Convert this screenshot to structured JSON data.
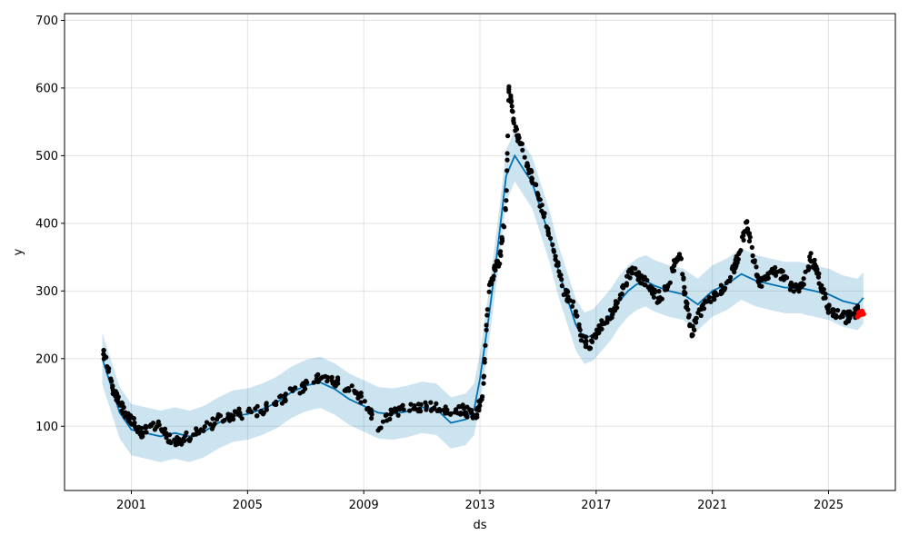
{
  "chart_data": {
    "type": "line",
    "title": "",
    "xlabel": "ds",
    "ylabel": "y",
    "xlim": [
      1998.7,
      2027.3
    ],
    "ylim": [
      5,
      710
    ],
    "x_ticks": [
      {
        "value": 2001,
        "label": "2001"
      },
      {
        "value": 2005,
        "label": "2005"
      },
      {
        "value": 2009,
        "label": "2009"
      },
      {
        "value": 2013,
        "label": "2013"
      },
      {
        "value": 2017,
        "label": "2017"
      },
      {
        "value": 2021,
        "label": "2021"
      },
      {
        "value": 2025,
        "label": "2025"
      }
    ],
    "y_ticks": [
      {
        "value": 100,
        "label": "100"
      },
      {
        "value": 200,
        "label": "200"
      },
      {
        "value": 300,
        "label": "300"
      },
      {
        "value": 400,
        "label": "400"
      },
      {
        "value": 500,
        "label": "500"
      },
      {
        "value": 600,
        "label": "600"
      },
      {
        "value": 700,
        "label": "700"
      }
    ],
    "grid": true,
    "colors": {
      "forecast_line": "#0072B2",
      "uncertainty_band": "#0072B2",
      "observed_points": "#000000",
      "test_points": "#ff0000"
    },
    "series": [
      {
        "kind": "observed",
        "x": [
          2000.0,
          2000.2,
          2000.4,
          2000.6,
          2000.8,
          2001.0,
          2001.3,
          2001.6,
          2002.0,
          2002.3,
          2002.6,
          2003.0,
          2003.5,
          2004.0,
          2004.5,
          2005.0,
          2005.5,
          2006.0,
          2006.5,
          2007.0,
          2007.5,
          2008.0,
          2008.5,
          2009.0,
          2009.5,
          2010.0,
          2010.5,
          2011.0,
          2011.5,
          2012.0,
          2012.4,
          2012.7,
          2012.9,
          2013.1,
          2013.3,
          2013.5,
          2013.7,
          2013.9,
          2014.0,
          2014.2,
          2014.4,
          2014.7,
          2015.0,
          2015.3,
          2015.6,
          2015.9,
          2016.2,
          2016.5,
          2016.8,
          2017.0,
          2017.3,
          2017.6,
          2017.9,
          2018.2,
          2018.5,
          2018.8,
          2019.1,
          2019.4,
          2019.7,
          2019.9,
          2020.1,
          2020.3,
          2020.6,
          2020.9,
          2021.2,
          2021.5,
          2021.8,
          2022.0,
          2022.2,
          2022.4,
          2022.6,
          2022.9,
          2023.2,
          2023.5,
          2023.8,
          2024.1,
          2024.4,
          2024.6,
          2024.8,
          2025.0,
          2025.3,
          2025.6,
          2025.8,
          2026.0
        ],
        "y": [
          215,
          185,
          150,
          135,
          120,
          110,
          90,
          95,
          105,
          80,
          78,
          85,
          95,
          110,
          118,
          120,
          125,
          135,
          150,
          160,
          170,
          168,
          155,
          140,
          100,
          120,
          125,
          130,
          128,
          120,
          125,
          118,
          120,
          150,
          300,
          330,
          350,
          430,
          600,
          540,
          520,
          480,
          440,
          400,
          350,
          300,
          280,
          230,
          220,
          240,
          255,
          270,
          300,
          330,
          320,
          310,
          290,
          300,
          340,
          350,
          280,
          240,
          270,
          290,
          300,
          310,
          340,
          370,
          400,
          350,
          310,
          320,
          330,
          320,
          300,
          310,
          350,
          330,
          300,
          275,
          265,
          260,
          265,
          270
        ]
      },
      {
        "kind": "forecast",
        "x": [
          2000.0,
          2000.3,
          2000.6,
          2001.0,
          2001.5,
          2002.0,
          2002.5,
          2003.0,
          2003.5,
          2004.0,
          2004.5,
          2005.0,
          2005.5,
          2006.0,
          2006.5,
          2007.0,
          2007.5,
          2008.0,
          2008.5,
          2009.0,
          2009.5,
          2010.0,
          2010.5,
          2011.0,
          2011.5,
          2012.0,
          2012.5,
          2012.8,
          2013.0,
          2013.3,
          2013.6,
          2013.9,
          2014.2,
          2014.5,
          2014.8,
          2015.1,
          2015.4,
          2015.7,
          2016.0,
          2016.3,
          2016.6,
          2016.9,
          2017.2,
          2017.5,
          2017.8,
          2018.1,
          2018.4,
          2018.7,
          2019.0,
          2019.5,
          2020.0,
          2020.5,
          2021.0,
          2021.5,
          2022.0,
          2022.5,
          2023.0,
          2023.5,
          2024.0,
          2024.5,
          2025.0,
          2025.5,
          2026.0,
          2026.2
        ],
        "y": [
          200,
          160,
          120,
          95,
          90,
          85,
          90,
          85,
          92,
          105,
          115,
          118,
          125,
          135,
          150,
          160,
          165,
          155,
          140,
          130,
          120,
          118,
          122,
          128,
          125,
          105,
          110,
          125,
          170,
          260,
          360,
          470,
          500,
          480,
          460,
          420,
          380,
          330,
          290,
          250,
          230,
          235,
          250,
          265,
          285,
          300,
          310,
          315,
          308,
          300,
          295,
          280,
          300,
          310,
          325,
          315,
          310,
          305,
          305,
          300,
          295,
          285,
          280,
          290
        ]
      },
      {
        "kind": "test",
        "x": [
          2026.0,
          2026.05,
          2026.1,
          2026.15,
          2026.2
        ],
        "y": [
          262,
          268,
          265,
          270,
          266
        ]
      }
    ]
  }
}
